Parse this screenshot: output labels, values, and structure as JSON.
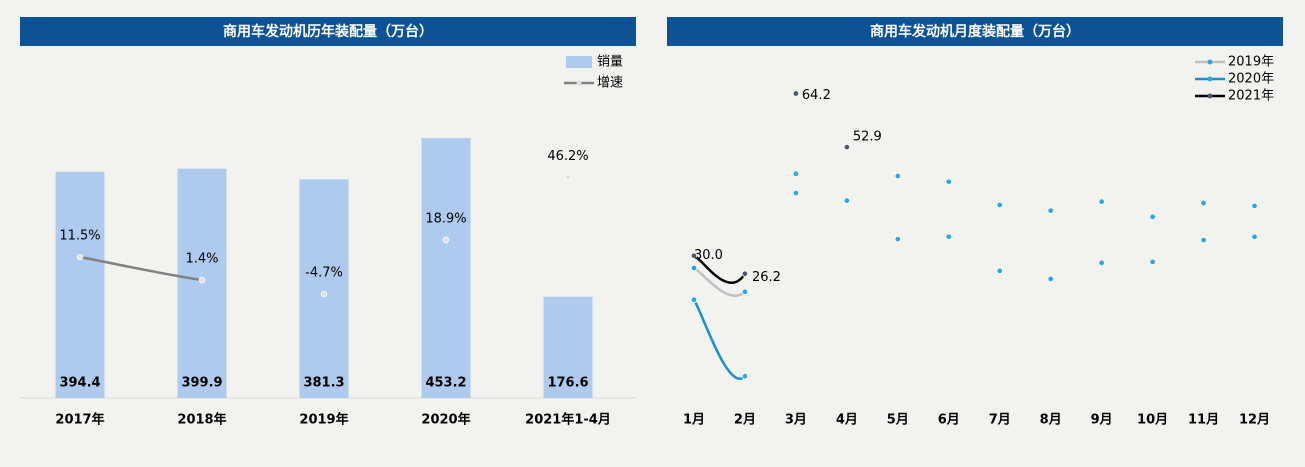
{
  "chart_data": [
    {
      "type": "bar",
      "title": "商用车发动机历年装配量（万台）",
      "categories": [
        "2017年",
        "2018年",
        "2019年",
        "2020年",
        "2021年1-4月"
      ],
      "series": [
        {
          "name": "销量",
          "type": "bar",
          "color": "#aecbef",
          "values": [
            394.4,
            399.9,
            381.3,
            453.2,
            176.6
          ]
        },
        {
          "name": "增速",
          "type": "line",
          "axis": "y2",
          "color": "#808080",
          "values": [
            11.5,
            1.4,
            -4.7,
            18.9,
            46.2
          ],
          "value_labels": [
            "11.5%",
            "1.4%",
            "-4.7%",
            "18.9%",
            "46.2%"
          ]
        }
      ],
      "ylim": [
        0,
        600
      ],
      "y2lim": [
        -50,
        100
      ],
      "legend": "upper right"
    },
    {
      "type": "line",
      "title": "商用车发动机月度装配量（万台）",
      "categories": [
        "1月",
        "2月",
        "3月",
        "4月",
        "5月",
        "6月",
        "7月",
        "8月",
        "9月",
        "10月",
        "11月",
        "12月"
      ],
      "series": [
        {
          "name": "2019年",
          "color": "#c0c0c0",
          "values": [
            27.4,
            22.4,
            47.3,
            41.6,
            33.5,
            34.0,
            26.8,
            25.1,
            28.5,
            28.7,
            33.3,
            34.0
          ]
        },
        {
          "name": "2020年",
          "color": "#1a8fcf",
          "values": [
            20.7,
            4.6,
            43.2,
            53.0,
            46.8,
            45.6,
            40.7,
            39.5,
            41.4,
            38.2,
            41.1,
            40.5
          ]
        },
        {
          "name": "2021年",
          "color": "#000000",
          "values": [
            30.0,
            26.2,
            64.2,
            52.9,
            null,
            null,
            null,
            null,
            null,
            null,
            null,
            null
          ],
          "value_labels": [
            "30.0",
            "26.2",
            "64.2",
            "52.9",
            null,
            null,
            null,
            null,
            null,
            null,
            null,
            null
          ]
        }
      ],
      "ylim": [
        0,
        70
      ],
      "legend": "upper right"
    }
  ]
}
